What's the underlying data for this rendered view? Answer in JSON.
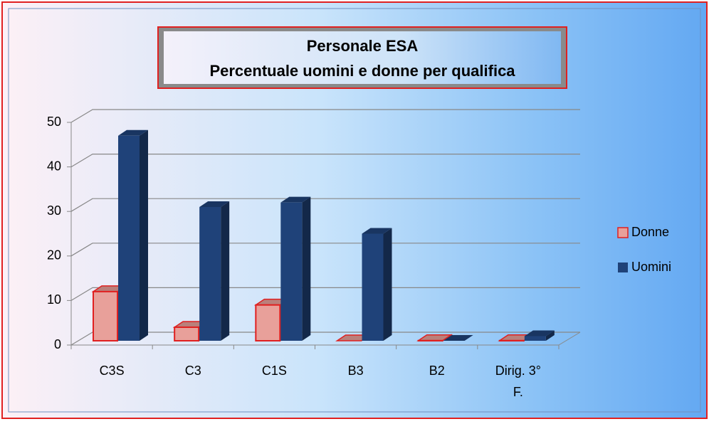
{
  "chart_data": {
    "type": "bar3d",
    "title": "Personale ESA",
    "subtitle": "Percentuale uomini e donne  per qualifica",
    "categories": [
      "C3S",
      "C3",
      "C1S",
      "B3",
      "B2",
      "Dirig. 3° F."
    ],
    "series": [
      {
        "name": "Donne",
        "color": "#e8a09a",
        "values": [
          12,
          4,
          9,
          0,
          1,
          1
        ]
      },
      {
        "name": "Uomini",
        "color": "#1f4279",
        "values": [
          47,
          31,
          32,
          25,
          0,
          2
        ]
      }
    ],
    "ylim": [
      0,
      50
    ],
    "yticks": [
      0,
      10,
      20,
      30,
      40,
      50
    ],
    "grid": true,
    "legend": "right"
  }
}
